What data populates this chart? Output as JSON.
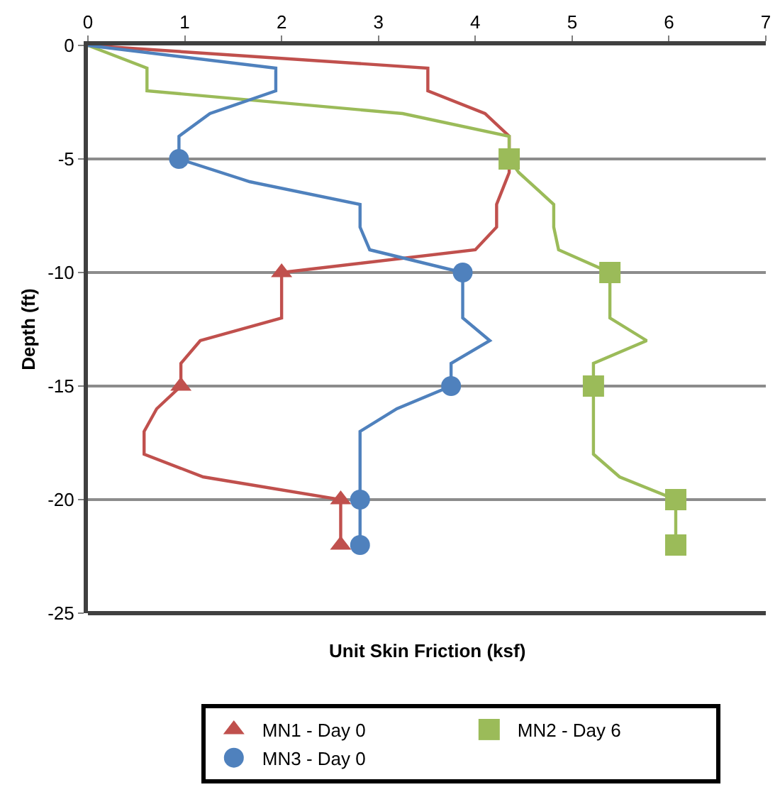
{
  "chart_data": {
    "type": "line",
    "xlabel": "Unit Skin Friction (ksf)",
    "ylabel": "Depth (ft)",
    "xlim": [
      0,
      7
    ],
    "xticks": [
      0,
      1,
      2,
      3,
      4,
      5,
      6,
      7
    ],
    "ylim": [
      -25,
      0
    ],
    "yticks": [
      -25,
      -20,
      -15,
      -10,
      -5,
      0
    ],
    "grid": "y",
    "legend": "bottom",
    "series": [
      {
        "marker": "none",
        "color": "#c0504d",
        "x": [
          0,
          3.51,
          3.51,
          4.1,
          4.35,
          4.35,
          4.22,
          4.22,
          4.0,
          2.0,
          2.0,
          1.16,
          0.96,
          0.96,
          0.71,
          0.58,
          0.58,
          1.19,
          2.61,
          2.61
        ],
        "values": [
          0,
          -1,
          -2,
          -3,
          -4,
          -5.6,
          -7,
          -8,
          -9,
          -10,
          -12,
          -13,
          -14,
          -15,
          -16,
          -17,
          -18,
          -19,
          -20,
          -22
        ]
      },
      {
        "marker": "none",
        "color": "#9bbb59",
        "x": [
          0,
          0.61,
          0.61,
          3.25,
          4.35,
          4.35,
          4.45,
          4.81,
          4.81,
          4.86,
          5.39,
          5.39,
          5.77,
          5.22,
          5.22,
          5.22,
          5.49,
          6.07,
          6.07
        ],
        "values": [
          0,
          -1,
          -2,
          -3,
          -4,
          -5,
          -5.6,
          -7,
          -8,
          -9,
          -10,
          -12,
          -13,
          -14,
          -15,
          -18,
          -19,
          -20,
          -22
        ]
      },
      {
        "marker": "none",
        "color": "#4f81bd",
        "x": [
          0,
          1.94,
          1.94,
          1.26,
          0.94,
          0.94,
          1.67,
          2.81,
          2.81,
          2.91,
          3.87,
          3.87,
          4.15,
          3.75,
          3.75,
          3.19,
          2.81,
          2.81,
          2.81
        ],
        "values": [
          0,
          -1,
          -2,
          -3,
          -4,
          -5,
          -6,
          -7,
          -8,
          -9,
          -10,
          -12,
          -13,
          -14,
          -15,
          -16,
          -17,
          -20,
          -22
        ]
      },
      {
        "type": "scatter",
        "marker": "triangle",
        "name": "MN1 - Day 0",
        "color": "#c0504d",
        "x": [
          2.0,
          0.96,
          2.61,
          2.61
        ],
        "values": [
          -10,
          -15,
          -20,
          -22
        ]
      },
      {
        "type": "scatter",
        "marker": "square",
        "name": "MN2 - Day 6",
        "color": "#9bbb59",
        "x": [
          4.35,
          5.39,
          5.22,
          6.07,
          6.07
        ],
        "values": [
          -5,
          -10,
          -15,
          -20,
          -22
        ]
      },
      {
        "type": "scatter",
        "marker": "circle",
        "name": "MN3 - Day 0",
        "color": "#4f81bd",
        "x": [
          0.94,
          3.87,
          3.75,
          2.81,
          2.81
        ],
        "values": [
          -5,
          -10,
          -15,
          -20,
          -22
        ]
      }
    ]
  }
}
